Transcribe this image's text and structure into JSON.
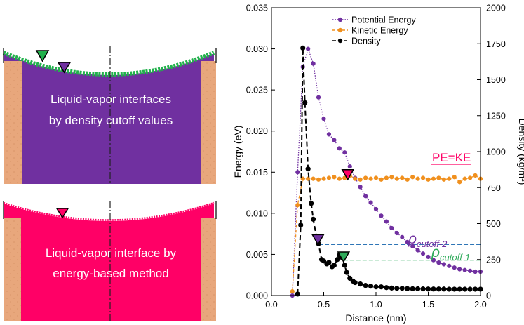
{
  "panels": {
    "top": {
      "caption_lines": [
        "Liquid-vapor interfaces",
        "by density cutoff values"
      ],
      "fill_color": "#7030a0",
      "edge_color": "#22b14c"
    },
    "bottom": {
      "caption_lines": [
        "Liquid-vapor interface by",
        "energy-based method"
      ],
      "fill_color": "#ff0066"
    }
  },
  "annotations": {
    "pe_ke": "PE=KE",
    "rho2_symbol": "ρ",
    "rho2_sub": "cutoff-2",
    "rho1_symbol": "ρ",
    "rho1_sub": "cutoff-1"
  },
  "colors": {
    "pe": "#7030a0",
    "ke": "#f0901e",
    "density": "#000000",
    "rho2": "#2e75b6",
    "rho1": "#2eaa5a",
    "pe_ke": "#ff0066"
  },
  "chart_data": {
    "type": "line",
    "xlabel": "Distance (nm)",
    "ylabel": "Energy (eV)",
    "y2label": "Density (kg/m³)",
    "xlim": [
      0.0,
      2.0
    ],
    "ylim": [
      0.0,
      0.035
    ],
    "y2lim": [
      0,
      2000
    ],
    "x_ticks": [
      "0.0",
      "0.5",
      "1.0",
      "1.5",
      "2.0"
    ],
    "y_ticks": [
      "0.000",
      "0.005",
      "0.010",
      "0.015",
      "0.020",
      "0.025",
      "0.030",
      "0.035"
    ],
    "y2_ticks": [
      "0",
      "250",
      "500",
      "750",
      "1000",
      "1250",
      "1500",
      "1750",
      "2000"
    ],
    "legend": {
      "placement": "top-right",
      "entries": [
        "Potential Energy",
        "Kinetic Energy",
        "Density"
      ]
    },
    "series": [
      {
        "name": "Potential Energy",
        "axis": "left",
        "style": "dotted",
        "x": [
          0.2,
          0.25,
          0.3,
          0.35,
          0.4,
          0.45,
          0.5,
          0.55,
          0.6,
          0.65,
          0.7,
          0.75,
          0.8,
          0.85,
          0.9,
          0.95,
          1.0,
          1.05,
          1.1,
          1.15,
          1.2,
          1.25,
          1.3,
          1.35,
          1.4,
          1.45,
          1.5,
          1.55,
          1.6,
          1.65,
          1.7,
          1.75,
          1.8,
          1.85,
          1.9,
          1.95,
          2.0
        ],
        "values": [
          0.0,
          0.015,
          0.0278,
          0.03,
          0.0282,
          0.0241,
          0.0215,
          0.0196,
          0.0189,
          0.0179,
          0.0174,
          0.0157,
          0.0143,
          0.0132,
          0.0121,
          0.0113,
          0.0105,
          0.0097,
          0.009,
          0.0082,
          0.0076,
          0.0071,
          0.0065,
          0.006,
          0.0055,
          0.0051,
          0.0047,
          0.0043,
          0.004,
          0.0038,
          0.0036,
          0.0034,
          0.0032,
          0.0031,
          0.003,
          0.0029,
          0.0029
        ]
      },
      {
        "name": "Kinetic Energy",
        "axis": "left",
        "style": "dashed",
        "x": [
          0.2,
          0.25,
          0.3,
          0.35,
          0.4,
          0.45,
          0.5,
          0.55,
          0.6,
          0.65,
          0.7,
          0.75,
          0.8,
          0.85,
          0.9,
          0.95,
          1.0,
          1.05,
          1.1,
          1.15,
          1.2,
          1.25,
          1.3,
          1.35,
          1.4,
          1.45,
          1.5,
          1.55,
          1.6,
          1.65,
          1.7,
          1.75,
          1.8,
          1.85,
          1.9,
          1.95,
          2.0
        ],
        "values": [
          0.0005,
          0.011,
          0.0142,
          0.0142,
          0.0142,
          0.0141,
          0.0142,
          0.0143,
          0.0144,
          0.0142,
          0.0143,
          0.0146,
          0.0142,
          0.0141,
          0.0143,
          0.0142,
          0.0143,
          0.0141,
          0.0143,
          0.0144,
          0.0142,
          0.0143,
          0.0141,
          0.0144,
          0.0142,
          0.0143,
          0.0141,
          0.0142,
          0.0143,
          0.0141,
          0.0142,
          0.0144,
          0.0138,
          0.0142,
          0.0143,
          0.0146,
          0.0142
        ]
      },
      {
        "name": "Density",
        "axis": "right",
        "style": "dashed",
        "x": [
          0.25,
          0.28,
          0.3,
          0.32,
          0.35,
          0.38,
          0.4,
          0.43,
          0.45,
          0.48,
          0.5,
          0.53,
          0.55,
          0.58,
          0.6,
          0.63,
          0.65,
          0.68,
          0.7,
          0.72,
          0.75,
          0.78,
          0.8,
          0.85,
          0.9,
          0.95,
          1.0,
          1.05,
          1.1,
          1.15,
          1.2,
          1.25,
          1.3,
          1.35,
          1.4,
          1.45,
          1.5,
          1.55,
          1.6,
          1.65,
          1.7,
          1.75,
          1.8,
          1.85,
          1.9,
          1.95,
          2.0
        ],
        "values": [
          10,
          490,
          1720,
          1340,
          880,
          640,
          530,
          410,
          360,
          250,
          240,
          220,
          230,
          200,
          210,
          250,
          280,
          260,
          210,
          160,
          120,
          100,
          90,
          80,
          70,
          65,
          60,
          60,
          55,
          52,
          50,
          50,
          48,
          47,
          47,
          46,
          45,
          45,
          45,
          45,
          44,
          44,
          44,
          44,
          44,
          44,
          44
        ]
      }
    ],
    "markers": [
      {
        "x": 0.73,
        "value": 0.0147,
        "color": "#ff0066",
        "label": "PE=KE"
      },
      {
        "x": 0.445,
        "value": 0.0068,
        "color": "#7030a0",
        "label": "rho_cutoff-2"
      },
      {
        "x": 0.69,
        "value": 0.0047,
        "color": "#2eaa5a",
        "label": "rho_cutoff-1"
      }
    ],
    "reference_lines": [
      {
        "label": "rho_cutoff-2",
        "value": 0.0062,
        "x_start": 0.45,
        "x_end": 2.0
      },
      {
        "label": "rho_cutoff-1",
        "value": 0.0043,
        "x_start": 0.69,
        "x_end": 2.0
      }
    ]
  }
}
